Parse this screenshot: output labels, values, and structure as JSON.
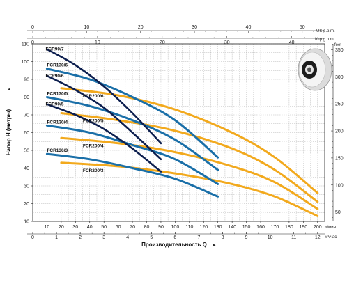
{
  "chart_data": {
    "type": "line",
    "title": "",
    "xlabel": "Производительность Q",
    "ylabel": "Напор H (метры)",
    "x_unit_bottom": "л/мин",
    "x_unit_bottom2": "м³/час",
    "x_unit_top": "US g.p.m.",
    "x_unit_top2": "Imp g.p.m.",
    "y_unit_right": "feet",
    "xlim": [
      0,
      205
    ],
    "ylim": [
      10,
      110
    ],
    "grid": true,
    "legend": "none",
    "axes": {
      "bottom_ticks": [
        "10",
        "20",
        "30",
        "40",
        "50",
        "60",
        "70",
        "80",
        "90",
        "100",
        "110",
        "120",
        "130",
        "140",
        "150",
        "160",
        "170",
        "180",
        "190",
        "200"
      ],
      "m3h_ticks": [
        "0",
        "1",
        "2",
        "3",
        "4",
        "5",
        "6",
        "7",
        "8",
        "9",
        "10",
        "11",
        "12"
      ],
      "left_ticks": [
        "10",
        "20",
        "30",
        "40",
        "50",
        "60",
        "70",
        "80",
        "90",
        "100",
        "110"
      ],
      "right_ticks": [
        "50",
        "100",
        "150",
        "200",
        "250",
        "300",
        "350"
      ],
      "usgpm_ticks": [
        "0",
        "10",
        "20",
        "30",
        "40",
        "50"
      ],
      "impgpm_ticks": [
        "0",
        "10",
        "20",
        "30",
        "40"
      ]
    },
    "colors": {
      "navy": "#0d1f4f",
      "blue": "#1a6fa8",
      "orange": "#f2a91d"
    },
    "series": [
      {
        "name": "FCR90/7",
        "color": "navy",
        "x": [
          10,
          30,
          50,
          70,
          90
        ],
        "y": [
          107,
          98,
          86,
          71,
          54
        ]
      },
      {
        "name": "FCR90/6",
        "color": "navy",
        "x": [
          10,
          30,
          50,
          70,
          90
        ],
        "y": [
          92,
          84,
          74,
          60,
          45
        ]
      },
      {
        "name": "FCR90/5",
        "color": "navy",
        "x": [
          10,
          30,
          50,
          70,
          90
        ],
        "y": [
          76,
          70,
          62,
          51,
          38
        ]
      },
      {
        "name": "FCR130/6",
        "color": "blue",
        "x": [
          10,
          40,
          70,
          100,
          130
        ],
        "y": [
          96,
          90,
          80,
          67,
          46
        ]
      },
      {
        "name": "FCR130/5",
        "color": "blue",
        "x": [
          10,
          40,
          70,
          100,
          130
        ],
        "y": [
          80,
          75,
          67,
          56,
          39
        ]
      },
      {
        "name": "FCR130/4",
        "color": "blue",
        "x": [
          10,
          40,
          70,
          100,
          130
        ],
        "y": [
          64,
          60,
          53,
          45,
          31
        ]
      },
      {
        "name": "FCR130/3",
        "color": "blue",
        "x": [
          10,
          40,
          70,
          100,
          130
        ],
        "y": [
          48,
          45,
          40,
          34,
          24
        ]
      },
      {
        "name": "FCR200/6",
        "color": "orange",
        "x": [
          20,
          60,
          100,
          140,
          170,
          200
        ],
        "y": [
          85,
          81,
          73,
          60,
          46,
          26
        ]
      },
      {
        "name": "FCR200/5",
        "color": "orange",
        "x": [
          20,
          60,
          100,
          140,
          170,
          200
        ],
        "y": [
          71,
          67,
          61,
          51,
          39,
          21
        ]
      },
      {
        "name": "FCR200/4",
        "color": "orange",
        "x": [
          20,
          60,
          100,
          140,
          170,
          200
        ],
        "y": [
          57,
          54,
          49,
          41,
          32,
          17
        ]
      },
      {
        "name": "FCR200/3",
        "color": "orange",
        "x": [
          20,
          60,
          100,
          140,
          170,
          200
        ],
        "y": [
          43,
          41,
          37,
          31,
          24,
          13
        ]
      }
    ]
  }
}
